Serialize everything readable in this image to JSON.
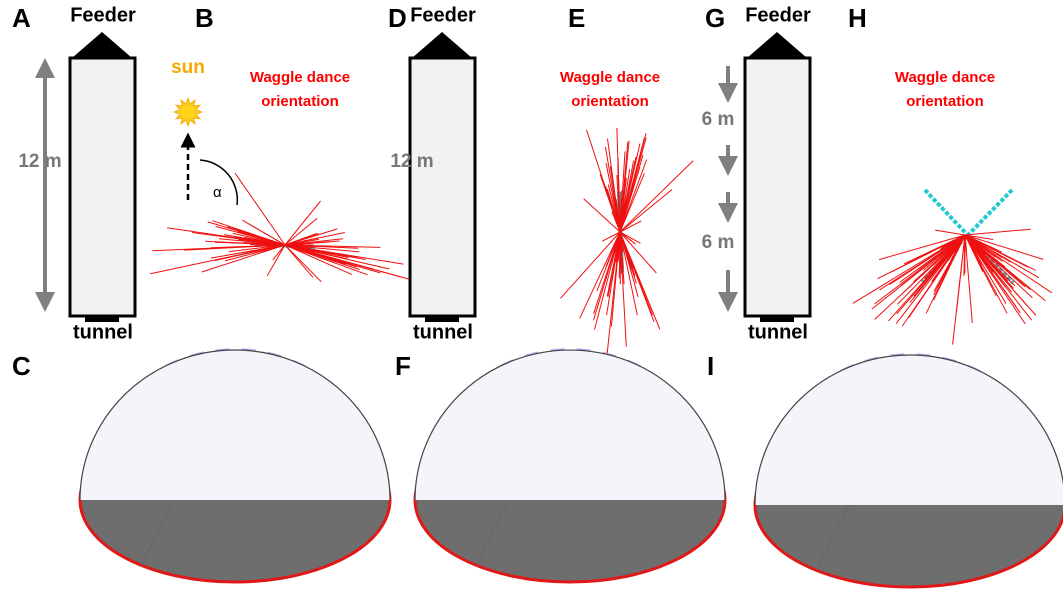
{
  "panel_labels": [
    "A",
    "B",
    "C",
    "D",
    "E",
    "F",
    "G",
    "H",
    "I"
  ],
  "tunnels": [
    {
      "top": "Feeder",
      "bottom": "tunnel",
      "distance": "12 m"
    },
    {
      "top": "Feeder",
      "bottom": "tunnel",
      "distance": "12 m"
    },
    {
      "top": "Feeder",
      "bottom": "tunnel",
      "distances": [
        "6 m",
        "6 m"
      ]
    }
  ],
  "sun_label": "sun",
  "angle_label": "α",
  "dance_titles": [
    [
      "Waggle dance",
      "orientation"
    ],
    [
      "Waggle dance",
      "orientation"
    ],
    [
      "Waggle dance",
      "orientation"
    ]
  ]
}
